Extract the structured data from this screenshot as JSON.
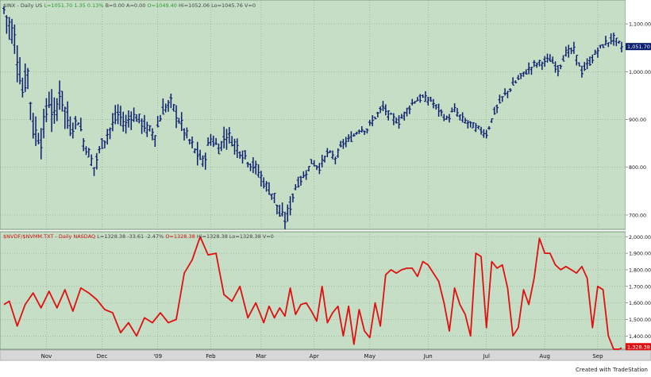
{
  "app": {
    "watermark": "Created with TradeStation"
  },
  "colors": {
    "background": "#c6dec6",
    "grid": "#8aa68a",
    "price_bars": "#0b1f6e",
    "breadth_line": "#e01010",
    "axis_text": "#111111",
    "header_gray": "#444444",
    "header_green": "#2a9a2a",
    "header_red": "#d01010",
    "last_label_blue": "#0b1f6e",
    "last_label_red": "#e01010",
    "scrollbar": "#d8d8d8"
  },
  "chart_data": [
    {
      "type": "ohlc",
      "header": [
        {
          "text": "$INX - Daily  US",
          "color": "gray"
        },
        {
          "text": "L=1051.70  1.35  0.13%",
          "color": "green"
        },
        {
          "text": "B=0.00  A=0.00",
          "color": "gray"
        },
        {
          "text": "O=1049.40",
          "color": "green"
        },
        {
          "text": "Hi=1052.06  Lo=1045.76  V=0",
          "color": "gray"
        }
      ],
      "x_labels": [
        "Nov",
        "Dec",
        "'09",
        "Feb",
        "Mar",
        "Apr",
        "May",
        "Jun",
        "Jul",
        "Aug",
        "Sep"
      ],
      "y_ticks": [
        700,
        800,
        900,
        1000,
        1100
      ],
      "y_tick_labels": [
        "700.00",
        "800.00",
        "900.00",
        "1,000.00",
        "1,100.00"
      ],
      "ylim": [
        670,
        1150
      ],
      "last_value_label": "1,051.70",
      "last_value": 1051.7,
      "trading_days": 233,
      "anchors": [
        [
          0,
          1130
        ],
        [
          4,
          1070
        ],
        [
          7,
          960
        ],
        [
          9,
          1000
        ],
        [
          11,
          880
        ],
        [
          14,
          860
        ],
        [
          17,
          940
        ],
        [
          19,
          900
        ],
        [
          21,
          960
        ],
        [
          23,
          920
        ],
        [
          25,
          880
        ],
        [
          28,
          900
        ],
        [
          30,
          855
        ],
        [
          32,
          830
        ],
        [
          34,
          800
        ],
        [
          37,
          850
        ],
        [
          40,
          880
        ],
        [
          43,
          910
        ],
        [
          46,
          890
        ],
        [
          48,
          910
        ],
        [
          51,
          900
        ],
        [
          54,
          880
        ],
        [
          57,
          870
        ],
        [
          60,
          920
        ],
        [
          63,
          935
        ],
        [
          66,
          900
        ],
        [
          69,
          865
        ],
        [
          72,
          835
        ],
        [
          75,
          810
        ],
        [
          78,
          860
        ],
        [
          81,
          840
        ],
        [
          84,
          870
        ],
        [
          87,
          850
        ],
        [
          90,
          830
        ],
        [
          93,
          810
        ],
        [
          96,
          790
        ],
        [
          99,
          760
        ],
        [
          102,
          740
        ],
        [
          104,
          700
        ],
        [
          106,
          690
        ],
        [
          108,
          720
        ],
        [
          110,
          760
        ],
        [
          113,
          780
        ],
        [
          116,
          810
        ],
        [
          119,
          800
        ],
        [
          122,
          830
        ],
        [
          125,
          820
        ],
        [
          128,
          850
        ],
        [
          131,
          860
        ],
        [
          134,
          880
        ],
        [
          137,
          880
        ],
        [
          140,
          905
        ],
        [
          143,
          925
        ],
        [
          146,
          905
        ],
        [
          149,
          895
        ],
        [
          152,
          920
        ],
        [
          155,
          940
        ],
        [
          158,
          945
        ],
        [
          161,
          940
        ],
        [
          164,
          920
        ],
        [
          167,
          900
        ],
        [
          170,
          920
        ],
        [
          173,
          900
        ],
        [
          176,
          890
        ],
        [
          179,
          880
        ],
        [
          182,
          870
        ],
        [
          185,
          915
        ],
        [
          188,
          945
        ],
        [
          191,
          965
        ],
        [
          194,
          985
        ],
        [
          197,
          1000
        ],
        [
          200,
          1015
        ],
        [
          203,
          1020
        ],
        [
          206,
          1025
        ],
        [
          209,
          1005
        ],
        [
          212,
          1040
        ],
        [
          215,
          1045
        ],
        [
          218,
          1000
        ],
        [
          221,
          1020
        ],
        [
          224,
          1045
        ],
        [
          227,
          1060
        ],
        [
          230,
          1070
        ],
        [
          233,
          1052
        ]
      ],
      "noise": 10
    },
    {
      "type": "line",
      "header": [
        {
          "text": "$NVDF/$NVMM.TXT - Daily  NASDAQ",
          "color": "red"
        },
        {
          "text": "L=1328.38  -33.61  -2.47%",
          "color": "gray"
        },
        {
          "text": "O=1328.38",
          "color": "red"
        },
        {
          "text": "Hi=1328.38  Lo=1328.38  V=0",
          "color": "gray"
        }
      ],
      "y_ticks": [
        1400,
        1500,
        1600,
        1700,
        1800,
        1900,
        2000
      ],
      "y_tick_labels": [
        "1,400.00",
        "1,500.00",
        "1,600.00",
        "1,700.00",
        "1,800.00",
        "1,900.00",
        "2,000.00"
      ],
      "ylim": [
        1320,
        2030
      ],
      "last_value_label": "1,328.38",
      "last_value": 1328.38,
      "x": [
        0,
        2,
        5,
        8,
        11,
        14,
        17,
        20,
        23,
        26,
        29,
        32,
        35,
        38,
        41,
        44,
        47,
        50,
        53,
        56,
        59,
        62,
        65,
        68,
        71,
        74,
        77,
        80,
        83,
        86,
        89,
        92,
        95,
        98,
        100,
        102,
        104,
        106,
        108,
        110,
        112,
        114,
        116,
        118,
        120,
        122,
        124,
        126,
        128,
        130,
        132,
        134,
        136,
        138,
        140,
        142,
        144,
        146,
        148,
        150,
        152,
        154,
        156,
        158,
        160,
        162,
        164,
        166,
        168,
        170,
        172,
        174,
        176,
        178,
        180,
        182,
        184,
        186,
        188,
        190,
        192,
        194,
        196,
        198,
        200,
        202,
        204,
        206,
        208,
        210,
        212,
        214,
        216,
        218,
        220,
        222,
        224,
        226,
        228,
        230,
        231,
        232,
        233
      ],
      "y": [
        1590,
        1610,
        1460,
        1590,
        1660,
        1570,
        1670,
        1570,
        1680,
        1550,
        1690,
        1660,
        1620,
        1560,
        1540,
        1420,
        1480,
        1400,
        1510,
        1480,
        1540,
        1480,
        1500,
        1780,
        1860,
        2000,
        1890,
        1900,
        1650,
        1610,
        1700,
        1510,
        1600,
        1480,
        1580,
        1510,
        1570,
        1520,
        1690,
        1530,
        1590,
        1600,
        1550,
        1490,
        1700,
        1480,
        1540,
        1580,
        1400,
        1580,
        1350,
        1560,
        1430,
        1390,
        1600,
        1460,
        1770,
        1800,
        1780,
        1800,
        1810,
        1810,
        1760,
        1850,
        1830,
        1780,
        1730,
        1600,
        1430,
        1690,
        1590,
        1530,
        1400,
        1900,
        1880,
        1450,
        1850,
        1810,
        1830,
        1690,
        1400,
        1450,
        1680,
        1590,
        1750,
        1990,
        1900,
        1900,
        1830,
        1800,
        1820,
        1800,
        1780,
        1820,
        1750,
        1450,
        1700,
        1680,
        1400,
        1320,
        1320,
        1320,
        1328
      ]
    }
  ]
}
